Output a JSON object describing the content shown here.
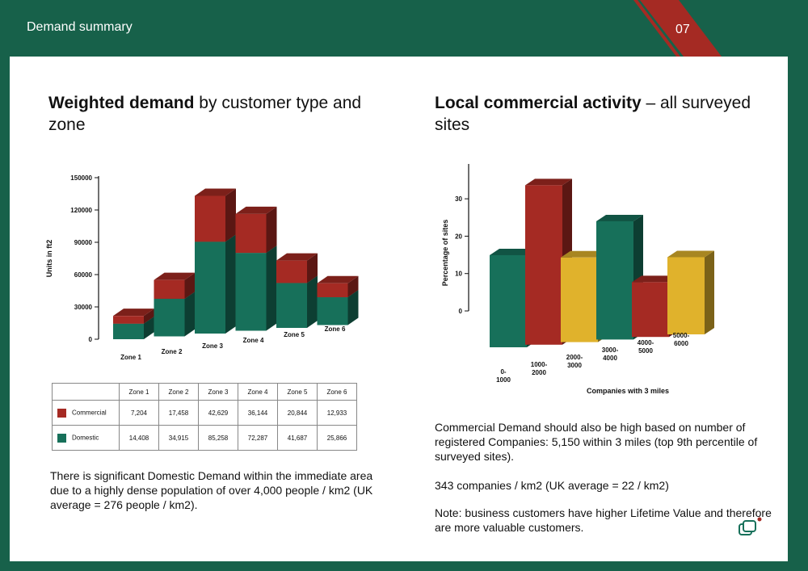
{
  "header": {
    "title": "Demand summary",
    "page_number": "07"
  },
  "colors": {
    "background": "#17614a",
    "commercial": "#a52a23",
    "domestic": "#17705a",
    "highlight_yellow": "#e0b22c"
  },
  "left_heading": {
    "bold": "Weighted demand",
    "rest": " by customer type and zone"
  },
  "right_heading": {
    "bold": "Local commercial activity",
    "rest": " – all surveyed sites"
  },
  "chart_data": [
    {
      "type": "bar",
      "stacked": true,
      "categories": [
        "Zone 1",
        "Zone 2",
        "Zone 3",
        "Zone 4",
        "Zone 5",
        "Zone 6"
      ],
      "series": [
        {
          "name": "Domestic",
          "values": [
            14408,
            34915,
            85258,
            72287,
            41687,
            25866
          ]
        },
        {
          "name": "Commercial",
          "values": [
            7204,
            17458,
            42629,
            36144,
            20844,
            12933
          ]
        }
      ],
      "ylabel": "Units in ft2",
      "xlabel": "",
      "ylim": [
        0,
        150000
      ],
      "yticks": [
        0,
        30000,
        60000,
        90000,
        120000,
        150000
      ]
    },
    {
      "type": "bar",
      "categories": [
        "0-\n1000",
        "1000-\n2000",
        "2000-\n3000",
        "3000-\n4000",
        "4000-\n5000",
        "5000-\n6000"
      ],
      "values": [
        16,
        34,
        14,
        23,
        6,
        12
      ],
      "bar_colors": [
        "#17705a",
        "#a52a23",
        "#e0b22c",
        "#17705a",
        "#a52a23",
        "#e0b22c"
      ],
      "ylabel": "Percentage of sites",
      "xlabel": "Companies with 3 miles",
      "ylim": [
        0,
        35
      ],
      "yticks": [
        0,
        10,
        20,
        30
      ]
    }
  ],
  "table": {
    "headers": [
      "Zone 1",
      "Zone 2",
      "Zone 3",
      "Zone 4",
      "Zone 5",
      "Zone 6"
    ],
    "rows": [
      {
        "label": "Commercial",
        "color": "#a52a23",
        "values": [
          "7,204",
          "17,458",
          "42,629",
          "36,144",
          "20,844",
          "12,933"
        ]
      },
      {
        "label": "Domestic",
        "color": "#17705a",
        "values": [
          "14,408",
          "34,915",
          "85,258",
          "72,287",
          "41,687",
          "25,866"
        ]
      }
    ]
  },
  "left_paragraph": "There is significant Domestic Demand within the immediate area due to a highly dense population of over 4,000 people / km2 (UK average = 276 people / km2).",
  "right_paragraphs": [
    "Commercial Demand should also be high based on number of registered Companies: 5,150 within 3 miles (top 9th percentile of surveyed sites).",
    "343 companies / km2 (UK average = 22 / km2)",
    "Note: business customers have higher Lifetime Value and therefore are more valuable customers."
  ],
  "logo_icon": "stacked-windows-icon"
}
